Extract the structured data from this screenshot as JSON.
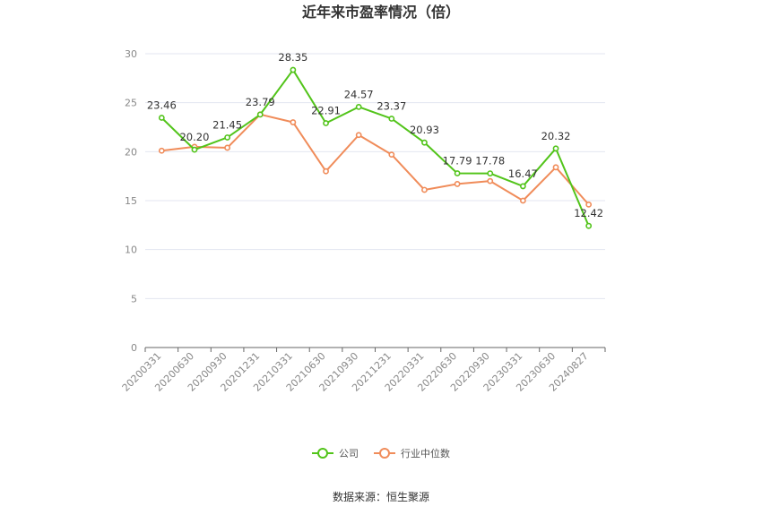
{
  "title": "近年来市盈率情况（倍）",
  "source": "数据来源：恒生聚源",
  "chart_data": {
    "type": "line",
    "title": "近年来市盈率情况（倍）",
    "categories": [
      "20200331",
      "20200630",
      "20200930",
      "20201231",
      "20210331",
      "20210630",
      "20210930",
      "20211231",
      "20220331",
      "20220630",
      "20220930",
      "20230331",
      "20230630",
      "20240827"
    ],
    "ylim": [
      0,
      30
    ],
    "yticks": [
      0,
      5,
      10,
      15,
      20,
      25,
      30
    ],
    "grid": true,
    "legend_position": "bottom",
    "series": [
      {
        "name": "公司",
        "color": "#52c41a",
        "values": [
          23.46,
          20.2,
          21.45,
          23.79,
          28.35,
          22.91,
          24.57,
          23.37,
          20.93,
          17.79,
          17.78,
          16.47,
          20.32,
          12.42
        ],
        "labels": [
          "23.46",
          "20.20",
          "21.45",
          "23.79",
          "28.35",
          "22.91",
          "24.57",
          "23.37",
          "20.93",
          "17.79",
          "17.78",
          "16.47",
          "20.32",
          "12.42"
        ]
      },
      {
        "name": "行业中位数",
        "color": "#f08c5a",
        "values": [
          20.1,
          20.5,
          20.4,
          23.8,
          23.0,
          18.0,
          21.7,
          19.7,
          16.1,
          16.7,
          17.0,
          15.0,
          18.4,
          14.6
        ]
      }
    ]
  }
}
